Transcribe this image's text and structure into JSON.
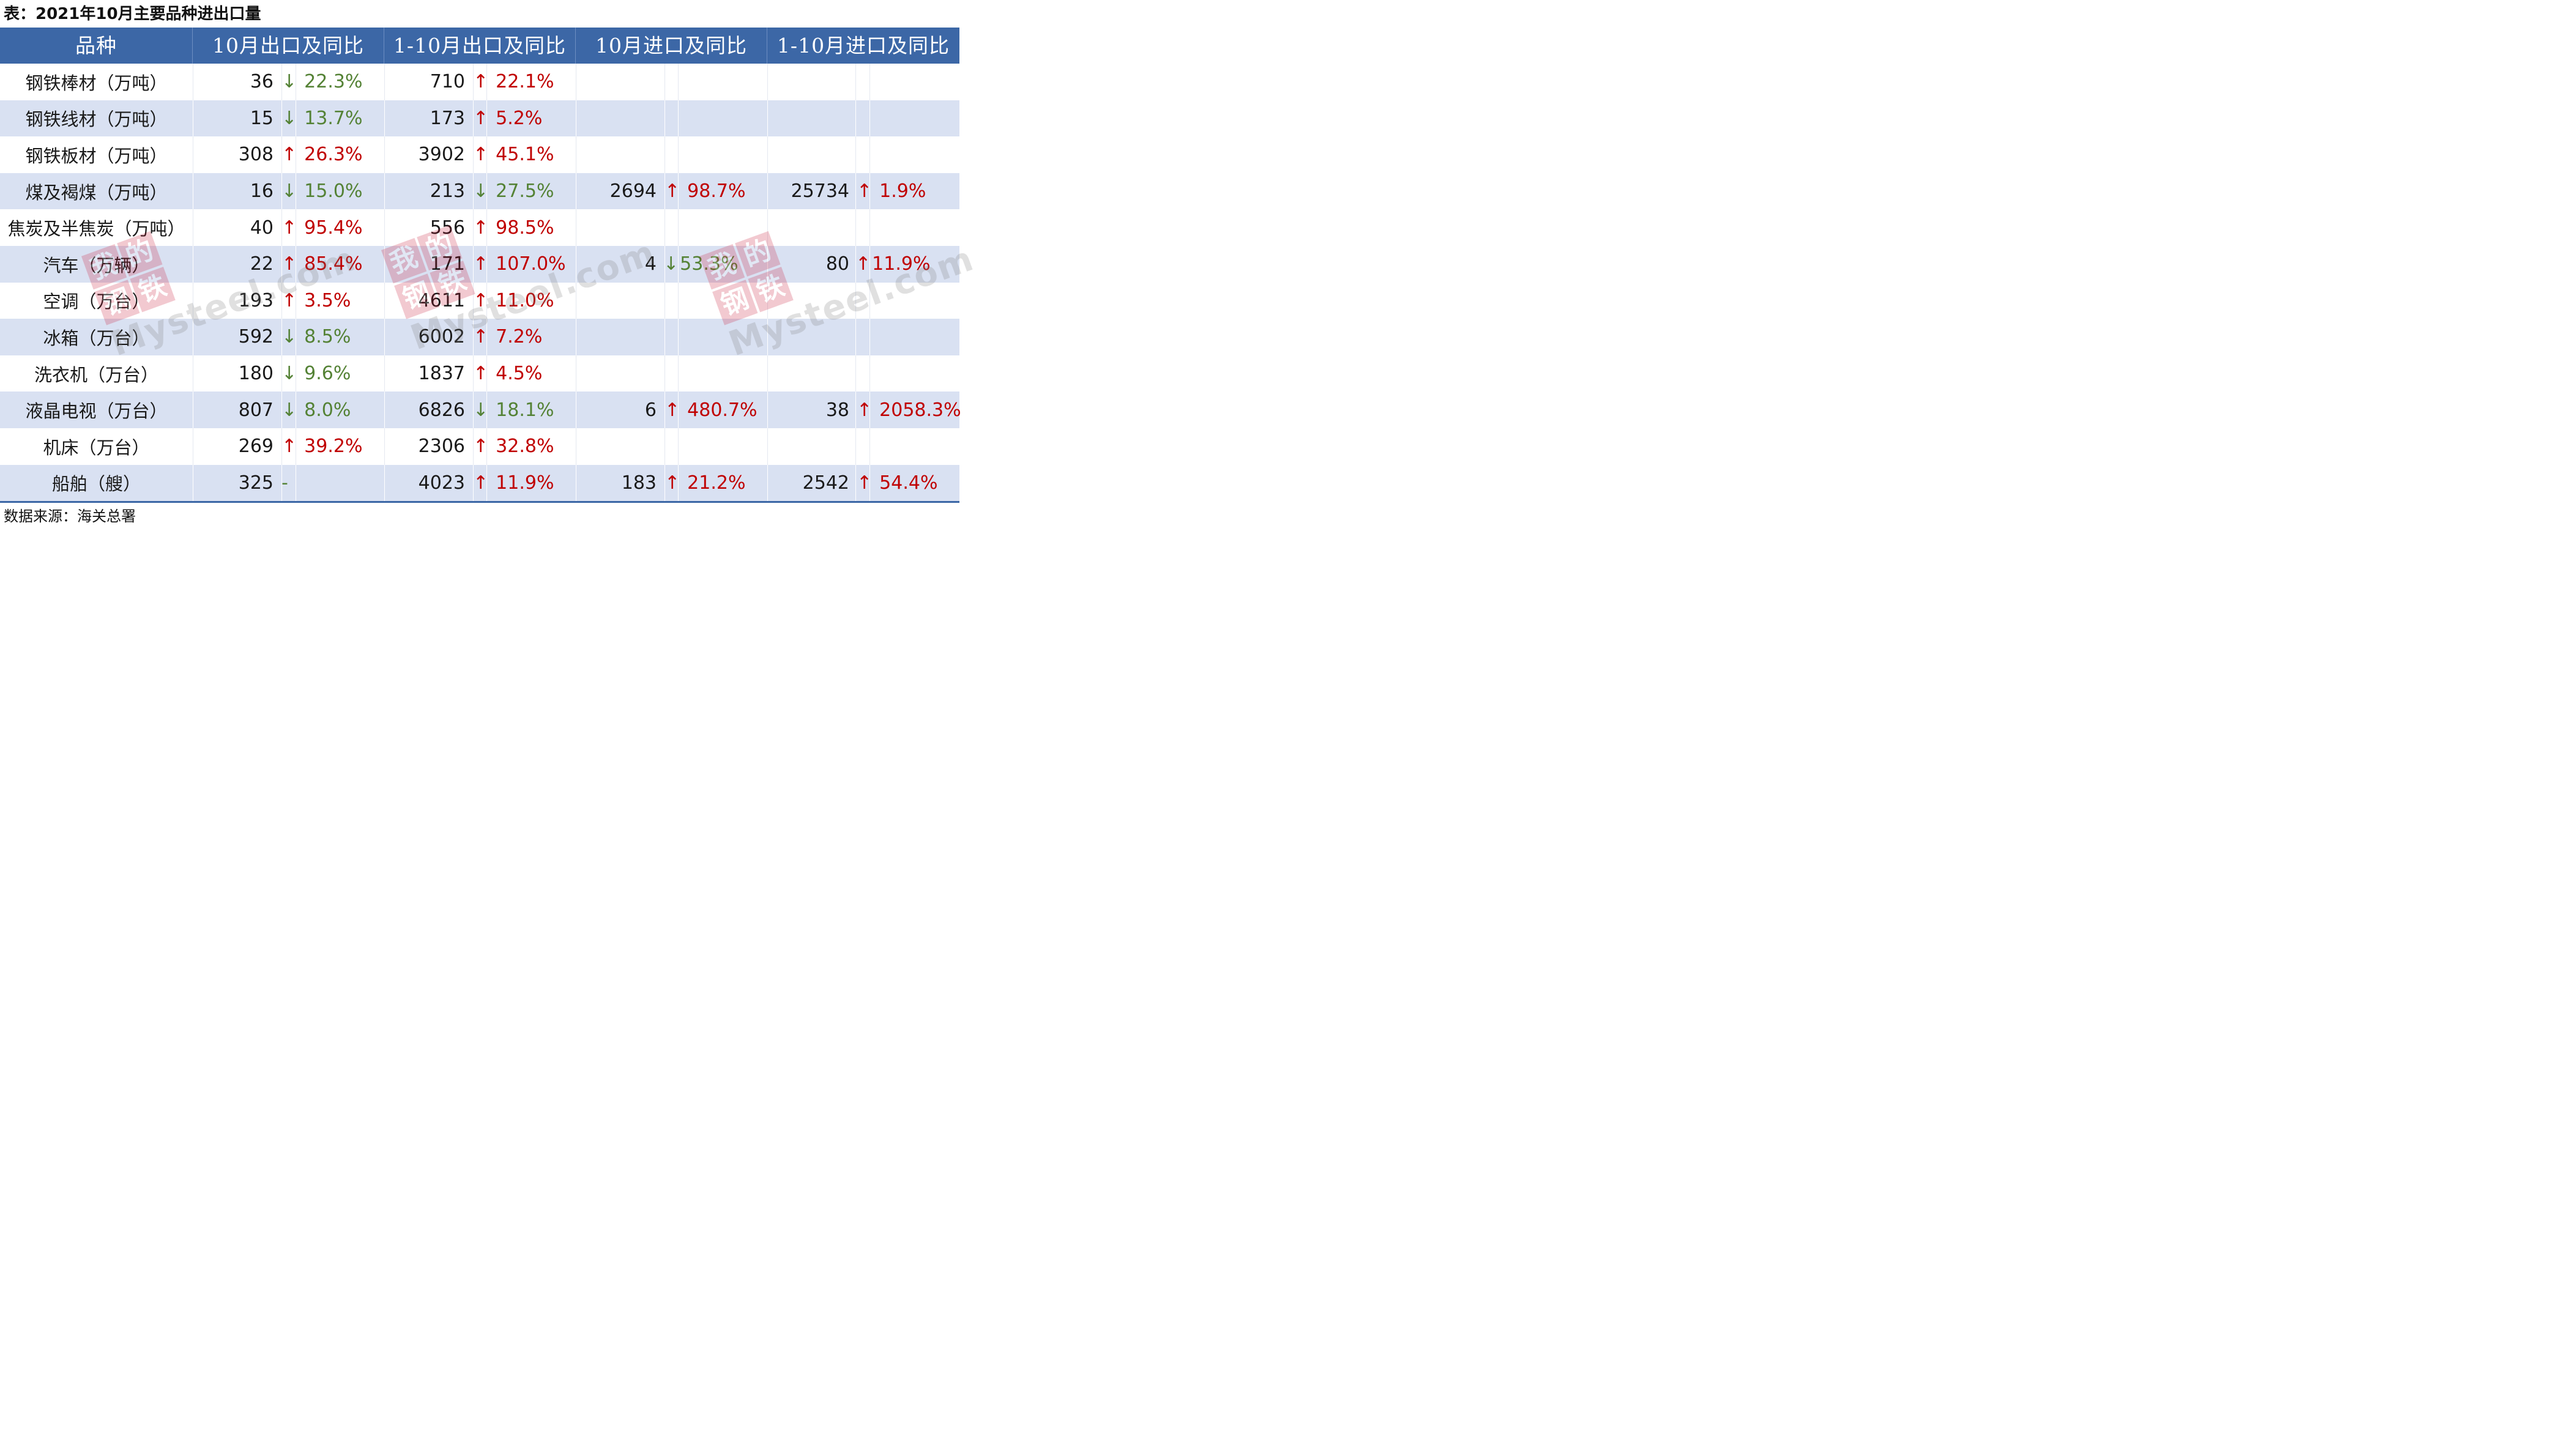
{
  "caption": "表：2021年10月主要品种进出口量",
  "source": "数据来源：海关总署",
  "headers": [
    "品种",
    "10月出口及同比",
    "1-10月出口及同比",
    "10月进口及同比",
    "1-10月进口及同比"
  ],
  "rows": [
    {
      "name": "钢铁棒材（万吨）",
      "ex_m": "36",
      "ex_m_chg": "22.3%",
      "ex_m_dir": "down",
      "ex_ytd": "710",
      "ex_ytd_chg": "22.1%",
      "ex_ytd_dir": "up",
      "im_m": "",
      "im_m_chg": "",
      "im_m_dir": "",
      "im_ytd": "",
      "im_ytd_chg": "",
      "im_ytd_dir": ""
    },
    {
      "name": "钢铁线材（万吨）",
      "ex_m": "15",
      "ex_m_chg": "13.7%",
      "ex_m_dir": "down",
      "ex_ytd": "173",
      "ex_ytd_chg": "5.2%",
      "ex_ytd_dir": "up",
      "im_m": "",
      "im_m_chg": "",
      "im_m_dir": "",
      "im_ytd": "",
      "im_ytd_chg": "",
      "im_ytd_dir": ""
    },
    {
      "name": "钢铁板材（万吨）",
      "ex_m": "308",
      "ex_m_chg": "26.3%",
      "ex_m_dir": "up",
      "ex_ytd": "3902",
      "ex_ytd_chg": "45.1%",
      "ex_ytd_dir": "up",
      "im_m": "",
      "im_m_chg": "",
      "im_m_dir": "",
      "im_ytd": "",
      "im_ytd_chg": "",
      "im_ytd_dir": ""
    },
    {
      "name": "煤及褐煤（万吨）",
      "ex_m": "16",
      "ex_m_chg": "15.0%",
      "ex_m_dir": "down",
      "ex_ytd": "213",
      "ex_ytd_chg": "27.5%",
      "ex_ytd_dir": "down",
      "im_m": "2694",
      "im_m_chg": "98.7%",
      "im_m_dir": "up",
      "im_ytd": "25734",
      "im_ytd_chg": "1.9%",
      "im_ytd_dir": "up"
    },
    {
      "name": "焦炭及半焦炭（万吨）",
      "ex_m": "40",
      "ex_m_chg": "95.4%",
      "ex_m_dir": "up",
      "ex_ytd": "556",
      "ex_ytd_chg": "98.5%",
      "ex_ytd_dir": "up",
      "im_m": "",
      "im_m_chg": "",
      "im_m_dir": "",
      "im_ytd": "",
      "im_ytd_chg": "",
      "im_ytd_dir": ""
    },
    {
      "name": "汽车（万辆）",
      "ex_m": "22",
      "ex_m_chg": "85.4%",
      "ex_m_dir": "up",
      "ex_ytd": "171",
      "ex_ytd_chg": "107.0%",
      "ex_ytd_dir": "up",
      "im_m": "4",
      "im_m_chg": "53.3%",
      "im_m_dir": "down",
      "im_ytd": "80",
      "im_ytd_chg": "11.9%",
      "im_ytd_dir": "up"
    },
    {
      "name": "空调（万台）",
      "ex_m": "193",
      "ex_m_chg": "3.5%",
      "ex_m_dir": "up",
      "ex_ytd": "4611",
      "ex_ytd_chg": "11.0%",
      "ex_ytd_dir": "up",
      "im_m": "",
      "im_m_chg": "",
      "im_m_dir": "",
      "im_ytd": "",
      "im_ytd_chg": "",
      "im_ytd_dir": ""
    },
    {
      "name": "冰箱（万台）",
      "ex_m": "592",
      "ex_m_chg": "8.5%",
      "ex_m_dir": "down",
      "ex_ytd": "6002",
      "ex_ytd_chg": "7.2%",
      "ex_ytd_dir": "up",
      "im_m": "",
      "im_m_chg": "",
      "im_m_dir": "",
      "im_ytd": "",
      "im_ytd_chg": "",
      "im_ytd_dir": ""
    },
    {
      "name": "洗衣机（万台）",
      "ex_m": "180",
      "ex_m_chg": "9.6%",
      "ex_m_dir": "down",
      "ex_ytd": "1837",
      "ex_ytd_chg": "4.5%",
      "ex_ytd_dir": "up",
      "im_m": "",
      "im_m_chg": "",
      "im_m_dir": "",
      "im_ytd": "",
      "im_ytd_chg": "",
      "im_ytd_dir": ""
    },
    {
      "name": "液晶电视（万台）",
      "ex_m": "807",
      "ex_m_chg": "8.0%",
      "ex_m_dir": "down",
      "ex_ytd": "6826",
      "ex_ytd_chg": "18.1%",
      "ex_ytd_dir": "down",
      "im_m": "6",
      "im_m_chg": "480.7%",
      "im_m_dir": "up",
      "im_ytd": "38",
      "im_ytd_chg": "2058.3%",
      "im_ytd_dir": "up"
    },
    {
      "name": "机床（万台）",
      "ex_m": "269",
      "ex_m_chg": "39.2%",
      "ex_m_dir": "up",
      "ex_ytd": "2306",
      "ex_ytd_chg": "32.8%",
      "ex_ytd_dir": "up",
      "im_m": "",
      "im_m_chg": "",
      "im_m_dir": "",
      "im_ytd": "",
      "im_ytd_chg": "",
      "im_ytd_dir": ""
    },
    {
      "name": "船舶（艘）",
      "ex_m": "325",
      "ex_m_chg": "",
      "ex_m_dir": "flat",
      "ex_ytd": "4023",
      "ex_ytd_chg": "11.9%",
      "ex_ytd_dir": "up",
      "im_m": "183",
      "im_m_chg": "21.2%",
      "im_m_dir": "up",
      "im_ytd": "2542",
      "im_ytd_chg": "54.4%",
      "im_ytd_dir": "up"
    }
  ],
  "arrows": {
    "up": "↑",
    "down": "↓",
    "flat": "-"
  },
  "watermark": {
    "chars": [
      "我",
      "的",
      "钢",
      "铁"
    ],
    "text": "Mysteel.com"
  }
}
